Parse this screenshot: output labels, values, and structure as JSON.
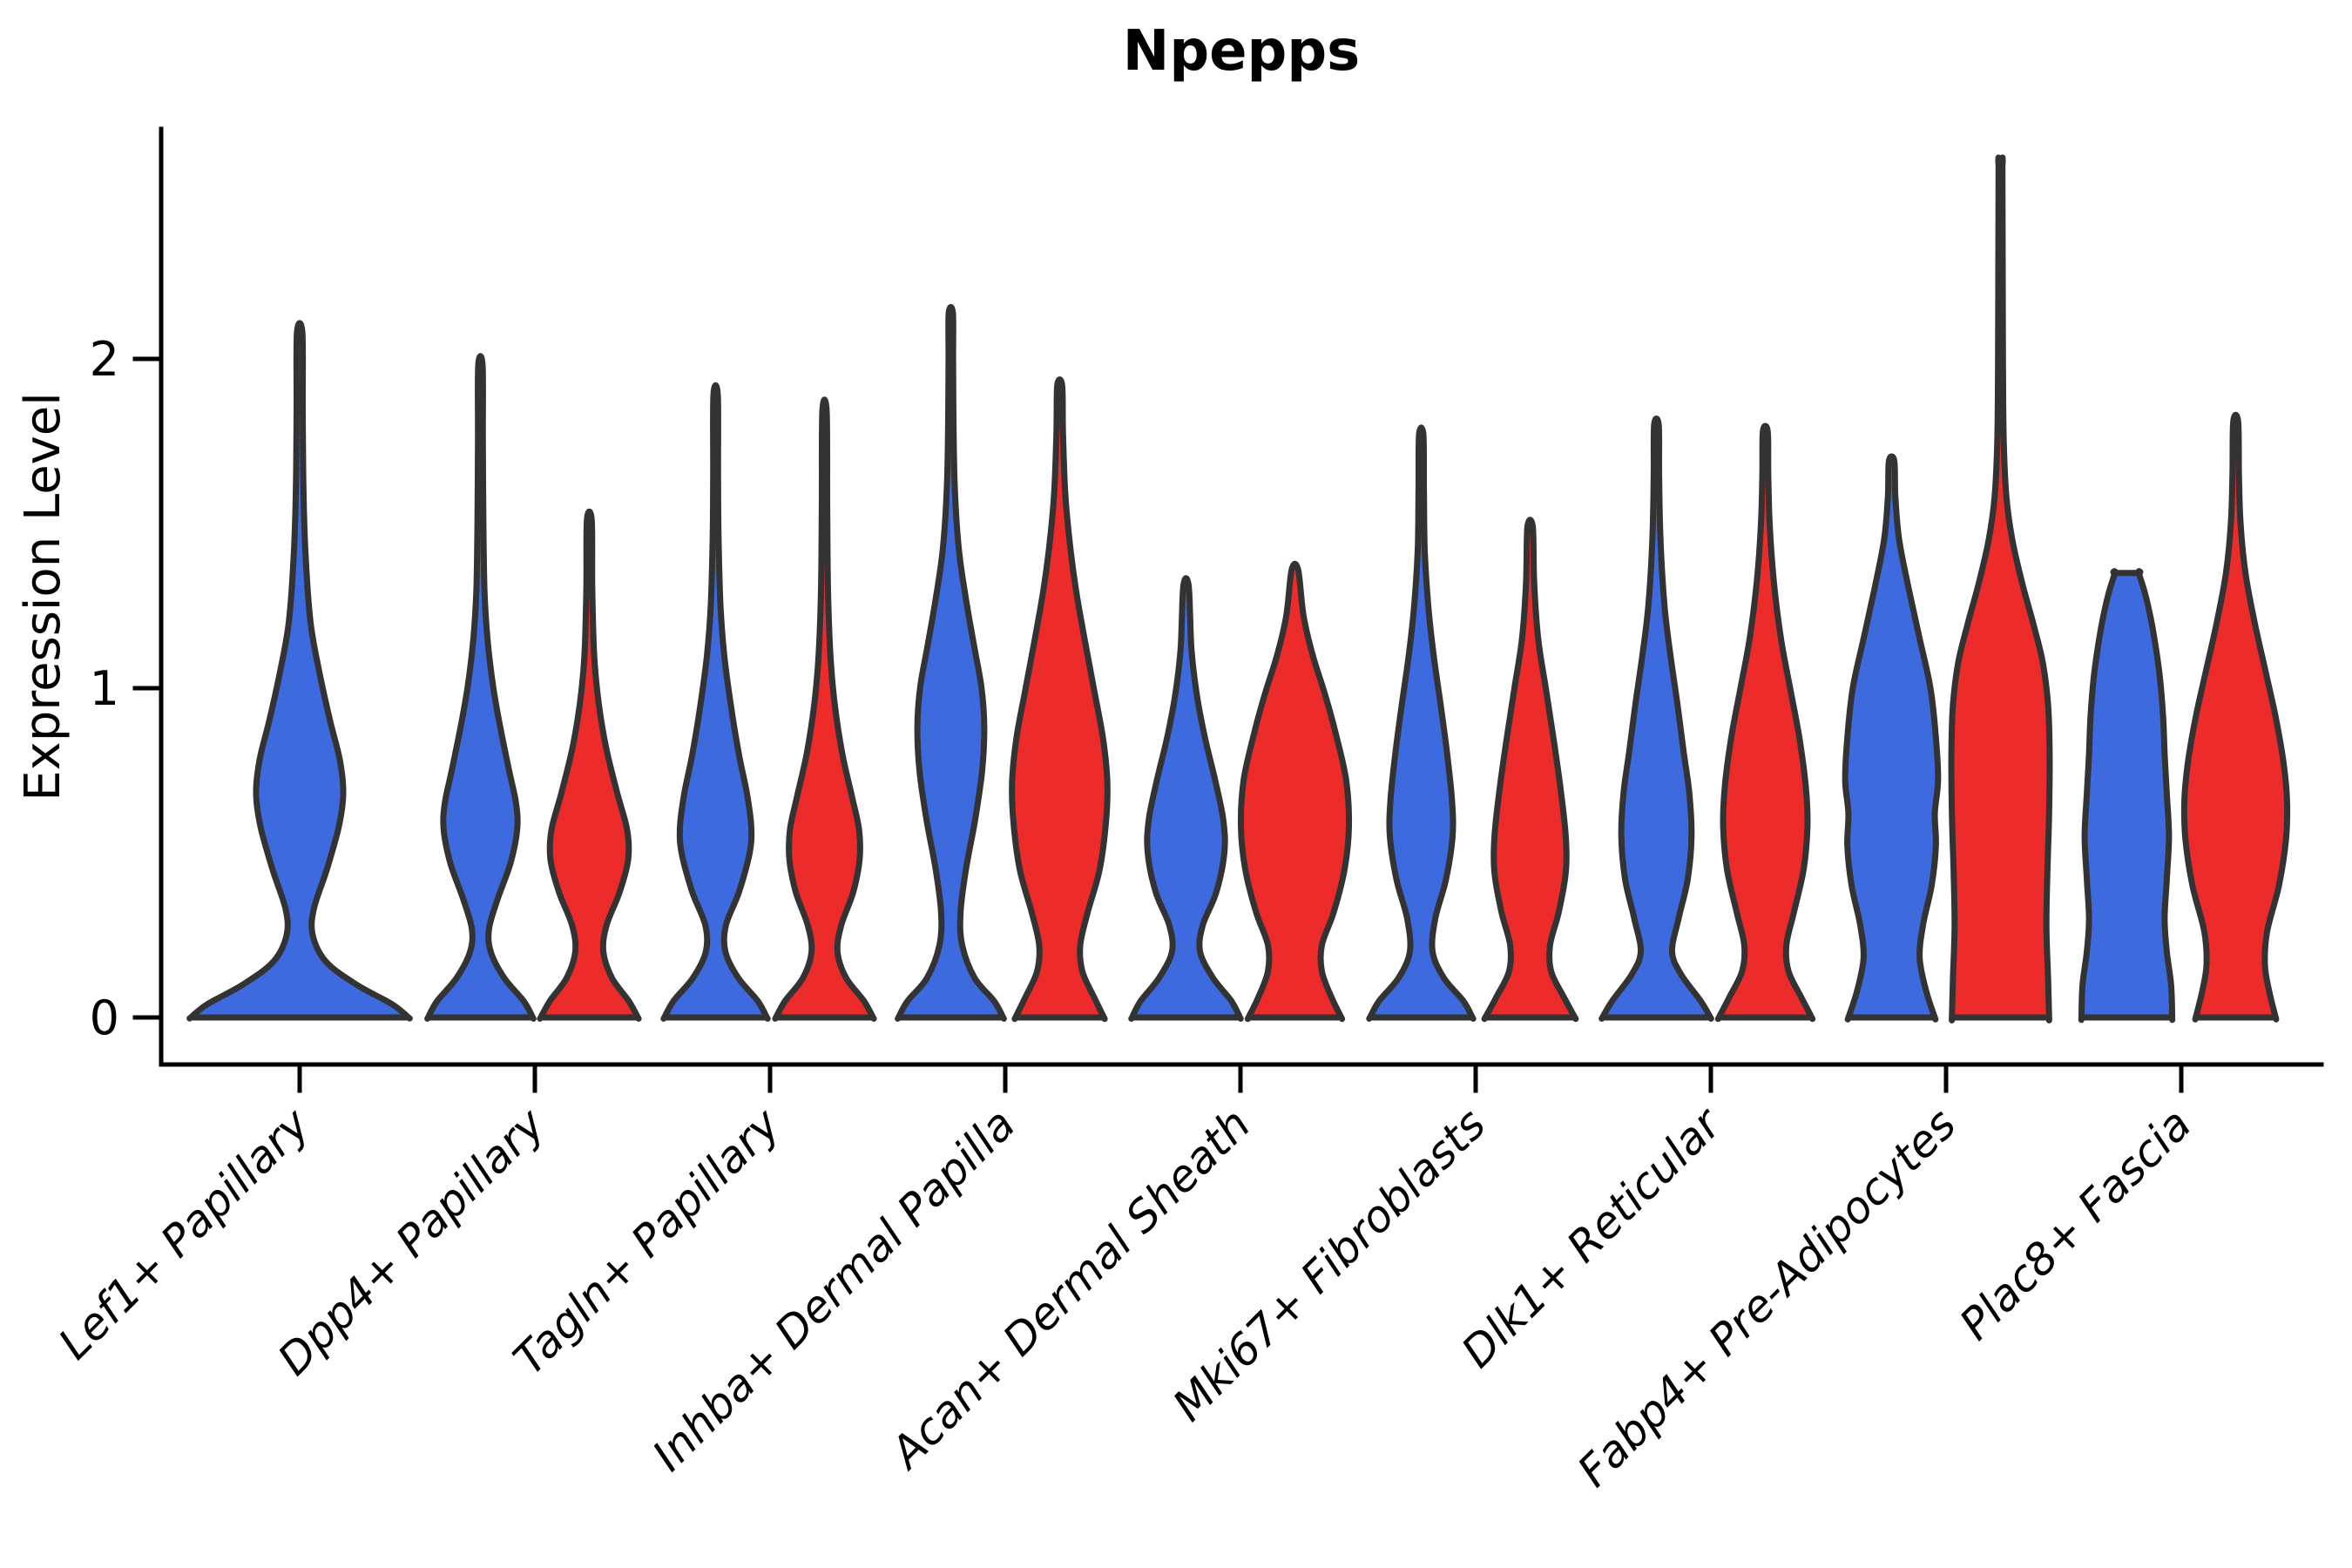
{
  "title": "Npepps",
  "axes": {
    "y_label": "Expression Level",
    "y_tick_labels": [
      "0",
      "1",
      "2"
    ]
  },
  "colors": {
    "blue": "#3E6ADF",
    "red": "#ED2B2B",
    "outline": "#333333",
    "axis": "#000000",
    "background": "#ffffff"
  },
  "chart_data": {
    "type": "violin",
    "title": "Npepps",
    "xlabel": "",
    "ylabel": "Expression Level",
    "y_ticks": [
      0,
      1,
      2
    ],
    "ylim": [
      -0.15,
      2.72
    ],
    "grid": false,
    "legend_position": "none",
    "categories": [
      "Lef1+ Papillary",
      "Dpp4+ Papillary",
      "Tagln+ Papillary",
      "Inhba+ Dermal Papilla",
      "Acan+ Dermal Sheath",
      "Mki67+ Fibroblasts",
      "Dlk1+ Reticular",
      "Fabp4+ Pre-Adipocytes",
      "Plac8+ Fascia"
    ],
    "groups": [
      "blue",
      "red"
    ],
    "group_colors": {
      "blue": "#3E6ADF",
      "red": "#ED2B2B"
    },
    "violins": [
      {
        "category": "Lef1+ Papillary",
        "group": "blue",
        "solo": true,
        "peak": 2.08,
        "tip": "point",
        "profile": [
          [
            0,
            1.0
          ],
          [
            0.04,
            0.85
          ],
          [
            0.1,
            0.52
          ],
          [
            0.17,
            0.24
          ],
          [
            0.25,
            0.12
          ],
          [
            0.33,
            0.13
          ],
          [
            0.45,
            0.25
          ],
          [
            0.58,
            0.36
          ],
          [
            0.68,
            0.4
          ],
          [
            0.78,
            0.37
          ],
          [
            0.9,
            0.28
          ],
          [
            1.05,
            0.18
          ],
          [
            1.2,
            0.1
          ],
          [
            1.4,
            0.055
          ],
          [
            1.6,
            0.035
          ],
          [
            1.85,
            0.028
          ],
          [
            2.08,
            0.025
          ]
        ]
      },
      {
        "category": "Dpp4+ Papillary",
        "group": "blue",
        "solo": false,
        "peak": 1.98,
        "tip": "point",
        "profile": [
          [
            0,
            0.97
          ],
          [
            0.05,
            0.8
          ],
          [
            0.12,
            0.44
          ],
          [
            0.2,
            0.19
          ],
          [
            0.27,
            0.16
          ],
          [
            0.36,
            0.32
          ],
          [
            0.47,
            0.56
          ],
          [
            0.57,
            0.68
          ],
          [
            0.65,
            0.66
          ],
          [
            0.75,
            0.53
          ],
          [
            0.88,
            0.37
          ],
          [
            1.0,
            0.24
          ],
          [
            1.15,
            0.13
          ],
          [
            1.3,
            0.075
          ],
          [
            1.5,
            0.055
          ],
          [
            1.75,
            0.045
          ],
          [
            1.98,
            0.04
          ]
        ]
      },
      {
        "category": "Dpp4+ Papillary",
        "group": "red",
        "solo": false,
        "peak": 1.51,
        "tip": "point",
        "profile": [
          [
            0,
            0.9
          ],
          [
            0.05,
            0.73
          ],
          [
            0.12,
            0.42
          ],
          [
            0.2,
            0.26
          ],
          [
            0.28,
            0.32
          ],
          [
            0.38,
            0.56
          ],
          [
            0.48,
            0.72
          ],
          [
            0.57,
            0.7
          ],
          [
            0.68,
            0.52
          ],
          [
            0.82,
            0.31
          ],
          [
            0.96,
            0.17
          ],
          [
            1.1,
            0.09
          ],
          [
            1.3,
            0.055
          ],
          [
            1.51,
            0.045
          ]
        ]
      },
      {
        "category": "Tagln+ Papillary",
        "group": "blue",
        "solo": false,
        "peak": 1.89,
        "tip": "point",
        "profile": [
          [
            0,
            0.95
          ],
          [
            0.05,
            0.78
          ],
          [
            0.12,
            0.42
          ],
          [
            0.2,
            0.18
          ],
          [
            0.28,
            0.19
          ],
          [
            0.38,
            0.43
          ],
          [
            0.5,
            0.63
          ],
          [
            0.58,
            0.66
          ],
          [
            0.68,
            0.58
          ],
          [
            0.8,
            0.43
          ],
          [
            0.95,
            0.28
          ],
          [
            1.1,
            0.16
          ],
          [
            1.25,
            0.09
          ],
          [
            1.45,
            0.055
          ],
          [
            1.65,
            0.045
          ],
          [
            1.89,
            0.04
          ]
        ]
      },
      {
        "category": "Tagln+ Papillary",
        "group": "red",
        "solo": false,
        "peak": 1.84,
        "tip": "point",
        "profile": [
          [
            0,
            0.9
          ],
          [
            0.05,
            0.73
          ],
          [
            0.12,
            0.4
          ],
          [
            0.2,
            0.24
          ],
          [
            0.28,
            0.31
          ],
          [
            0.38,
            0.53
          ],
          [
            0.48,
            0.65
          ],
          [
            0.57,
            0.64
          ],
          [
            0.67,
            0.51
          ],
          [
            0.8,
            0.33
          ],
          [
            0.95,
            0.19
          ],
          [
            1.1,
            0.11
          ],
          [
            1.3,
            0.065
          ],
          [
            1.55,
            0.05
          ],
          [
            1.84,
            0.04
          ]
        ]
      },
      {
        "category": "Inhba+ Dermal Papilla",
        "group": "blue",
        "solo": false,
        "peak": 2.14,
        "tip": "point",
        "profile": [
          [
            0,
            0.97
          ],
          [
            0.05,
            0.8
          ],
          [
            0.12,
            0.44
          ],
          [
            0.22,
            0.21
          ],
          [
            0.32,
            0.18
          ],
          [
            0.45,
            0.28
          ],
          [
            0.6,
            0.45
          ],
          [
            0.75,
            0.58
          ],
          [
            0.88,
            0.62
          ],
          [
            1.0,
            0.57
          ],
          [
            1.12,
            0.44
          ],
          [
            1.27,
            0.28
          ],
          [
            1.42,
            0.15
          ],
          [
            1.6,
            0.075
          ],
          [
            1.8,
            0.05
          ],
          [
            2.0,
            0.042
          ],
          [
            2.14,
            0.038
          ]
        ]
      },
      {
        "category": "Inhba+ Dermal Papilla",
        "group": "red",
        "solo": false,
        "peak": 1.92,
        "tip": "point",
        "profile": [
          [
            0,
            0.82
          ],
          [
            0.06,
            0.64
          ],
          [
            0.14,
            0.42
          ],
          [
            0.22,
            0.38
          ],
          [
            0.32,
            0.52
          ],
          [
            0.45,
            0.74
          ],
          [
            0.6,
            0.86
          ],
          [
            0.72,
            0.88
          ],
          [
            0.85,
            0.8
          ],
          [
            1.0,
            0.63
          ],
          [
            1.15,
            0.46
          ],
          [
            1.3,
            0.3
          ],
          [
            1.45,
            0.18
          ],
          [
            1.6,
            0.1
          ],
          [
            1.78,
            0.06
          ],
          [
            1.92,
            0.045
          ]
        ]
      },
      {
        "category": "Acan+ Dermal Sheath",
        "group": "blue",
        "solo": false,
        "peak": 1.31,
        "tip": "point",
        "profile": [
          [
            0,
            1.0
          ],
          [
            0.05,
            0.84
          ],
          [
            0.12,
            0.5
          ],
          [
            0.2,
            0.26
          ],
          [
            0.28,
            0.31
          ],
          [
            0.38,
            0.56
          ],
          [
            0.5,
            0.71
          ],
          [
            0.6,
            0.69
          ],
          [
            0.72,
            0.54
          ],
          [
            0.85,
            0.35
          ],
          [
            0.98,
            0.2
          ],
          [
            1.12,
            0.1
          ],
          [
            1.31,
            0.05
          ]
        ]
      },
      {
        "category": "Acan+ Dermal Sheath",
        "group": "red",
        "solo": false,
        "peak": 1.36,
        "tip": "point",
        "profile": [
          [
            0,
            0.86
          ],
          [
            0.06,
            0.68
          ],
          [
            0.14,
            0.5
          ],
          [
            0.22,
            0.5
          ],
          [
            0.32,
            0.72
          ],
          [
            0.45,
            0.92
          ],
          [
            0.58,
            1.0
          ],
          [
            0.72,
            0.95
          ],
          [
            0.86,
            0.76
          ],
          [
            0.98,
            0.56
          ],
          [
            1.1,
            0.33
          ],
          [
            1.22,
            0.16
          ],
          [
            1.36,
            0.06
          ]
        ]
      },
      {
        "category": "Mki67+ Fibroblasts",
        "group": "blue",
        "solo": false,
        "peak": 1.77,
        "tip": "point",
        "profile": [
          [
            0,
            0.95
          ],
          [
            0.05,
            0.78
          ],
          [
            0.12,
            0.42
          ],
          [
            0.2,
            0.21
          ],
          [
            0.3,
            0.26
          ],
          [
            0.42,
            0.46
          ],
          [
            0.55,
            0.58
          ],
          [
            0.66,
            0.57
          ],
          [
            0.8,
            0.48
          ],
          [
            0.95,
            0.36
          ],
          [
            1.1,
            0.23
          ],
          [
            1.25,
            0.13
          ],
          [
            1.42,
            0.065
          ],
          [
            1.6,
            0.05
          ],
          [
            1.77,
            0.04
          ]
        ]
      },
      {
        "category": "Mki67+ Fibroblasts",
        "group": "red",
        "solo": false,
        "peak": 1.49,
        "tip": "point",
        "profile": [
          [
            0,
            0.83
          ],
          [
            0.06,
            0.63
          ],
          [
            0.14,
            0.39
          ],
          [
            0.22,
            0.37
          ],
          [
            0.32,
            0.53
          ],
          [
            0.44,
            0.66
          ],
          [
            0.55,
            0.66
          ],
          [
            0.7,
            0.56
          ],
          [
            0.85,
            0.43
          ],
          [
            1.0,
            0.29
          ],
          [
            1.15,
            0.15
          ],
          [
            1.32,
            0.075
          ],
          [
            1.49,
            0.05
          ]
        ]
      },
      {
        "category": "Dlk1+ Reticular",
        "group": "blue",
        "solo": false,
        "peak": 1.8,
        "tip": "point",
        "profile": [
          [
            0,
            1.0
          ],
          [
            0.05,
            0.82
          ],
          [
            0.13,
            0.46
          ],
          [
            0.2,
            0.29
          ],
          [
            0.3,
            0.41
          ],
          [
            0.42,
            0.58
          ],
          [
            0.55,
            0.65
          ],
          [
            0.68,
            0.61
          ],
          [
            0.8,
            0.51
          ],
          [
            0.95,
            0.39
          ],
          [
            1.1,
            0.26
          ],
          [
            1.25,
            0.15
          ],
          [
            1.45,
            0.075
          ],
          [
            1.65,
            0.05
          ],
          [
            1.8,
            0.042
          ]
        ]
      },
      {
        "category": "Dlk1+ Reticular",
        "group": "red",
        "solo": false,
        "peak": 1.78,
        "tip": "point",
        "profile": [
          [
            0,
            0.86
          ],
          [
            0.06,
            0.67
          ],
          [
            0.14,
            0.43
          ],
          [
            0.22,
            0.39
          ],
          [
            0.32,
            0.53
          ],
          [
            0.45,
            0.71
          ],
          [
            0.58,
            0.78
          ],
          [
            0.7,
            0.75
          ],
          [
            0.85,
            0.63
          ],
          [
            1.0,
            0.46
          ],
          [
            1.15,
            0.29
          ],
          [
            1.32,
            0.16
          ],
          [
            1.5,
            0.08
          ],
          [
            1.65,
            0.055
          ],
          [
            1.78,
            0.045
          ]
        ]
      },
      {
        "category": "Fabp4+ Pre-Adipocytes",
        "group": "blue",
        "solo": false,
        "peak": 1.69,
        "tip": "point",
        "profile": [
          [
            0,
            0.8
          ],
          [
            0.08,
            0.64
          ],
          [
            0.18,
            0.52
          ],
          [
            0.28,
            0.58
          ],
          [
            0.4,
            0.74
          ],
          [
            0.52,
            0.82
          ],
          [
            0.62,
            0.8
          ],
          [
            0.72,
            0.86
          ],
          [
            0.85,
            0.82
          ],
          [
            1.0,
            0.72
          ],
          [
            1.15,
            0.52
          ],
          [
            1.3,
            0.32
          ],
          [
            1.45,
            0.14
          ],
          [
            1.58,
            0.07
          ],
          [
            1.69,
            0.05
          ]
        ]
      },
      {
        "category": "Fabp4+ Pre-Adipocytes",
        "group": "red",
        "solo": false,
        "peak": 2.59,
        "tip": "flat",
        "profile": [
          [
            0,
            0.9
          ],
          [
            0.12,
            0.88
          ],
          [
            0.28,
            0.85
          ],
          [
            0.45,
            0.87
          ],
          [
            0.62,
            0.9
          ],
          [
            0.8,
            0.91
          ],
          [
            0.95,
            0.88
          ],
          [
            1.08,
            0.78
          ],
          [
            1.2,
            0.6
          ],
          [
            1.32,
            0.4
          ],
          [
            1.45,
            0.22
          ],
          [
            1.58,
            0.11
          ],
          [
            1.75,
            0.06
          ],
          [
            2.0,
            0.045
          ],
          [
            2.3,
            0.04
          ],
          [
            2.59,
            0.035
          ]
        ]
      },
      {
        "category": "Plac8+ Fascia",
        "group": "blue",
        "solo": false,
        "peak": 1.35,
        "tip": "flat",
        "profile": [
          [
            0,
            0.84
          ],
          [
            0.1,
            0.82
          ],
          [
            0.2,
            0.74
          ],
          [
            0.3,
            0.7
          ],
          [
            0.42,
            0.74
          ],
          [
            0.55,
            0.78
          ],
          [
            0.68,
            0.74
          ],
          [
            0.8,
            0.7
          ],
          [
            0.92,
            0.67
          ],
          [
            1.05,
            0.6
          ],
          [
            1.18,
            0.48
          ],
          [
            1.28,
            0.35
          ],
          [
            1.35,
            0.22
          ]
        ]
      },
      {
        "category": "Plac8+ Fascia",
        "group": "red",
        "solo": false,
        "peak": 1.81,
        "tip": "point",
        "profile": [
          [
            0,
            0.74
          ],
          [
            0.08,
            0.62
          ],
          [
            0.16,
            0.54
          ],
          [
            0.26,
            0.58
          ],
          [
            0.4,
            0.8
          ],
          [
            0.54,
            0.93
          ],
          [
            0.66,
            0.95
          ],
          [
            0.78,
            0.88
          ],
          [
            0.92,
            0.73
          ],
          [
            1.06,
            0.54
          ],
          [
            1.2,
            0.35
          ],
          [
            1.35,
            0.18
          ],
          [
            1.5,
            0.09
          ],
          [
            1.65,
            0.06
          ],
          [
            1.81,
            0.045
          ]
        ]
      }
    ]
  }
}
